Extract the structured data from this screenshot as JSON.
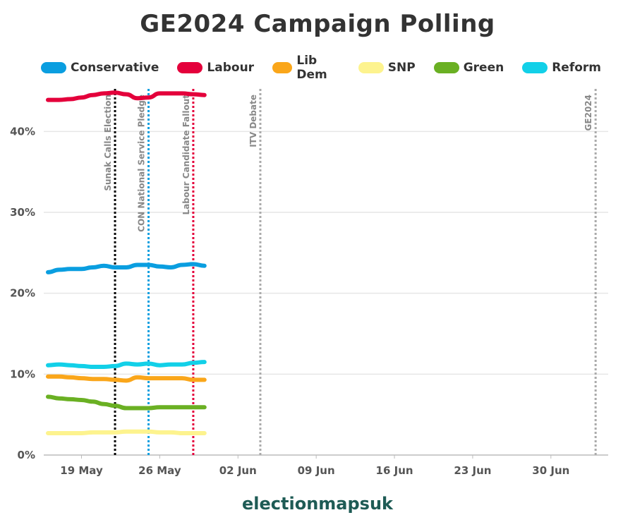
{
  "title": "GE2024 Campaign Polling",
  "brand": "electionmapsuk",
  "colors": {
    "grid": "#e6e6e6",
    "axis": "#bbbbbb"
  },
  "chart_data": {
    "type": "line",
    "title": "GE2024 Campaign Polling",
    "xlabel": "",
    "ylabel": "",
    "x_axis": {
      "start": "2024-05-16",
      "end": "2024-07-05",
      "ticks": [
        {
          "date": "2024-05-19",
          "label": "19 May"
        },
        {
          "date": "2024-05-26",
          "label": "26 May"
        },
        {
          "date": "2024-06-02",
          "label": "02 Jun"
        },
        {
          "date": "2024-06-09",
          "label": "09 Jun"
        },
        {
          "date": "2024-06-16",
          "label": "16 Jun"
        },
        {
          "date": "2024-06-23",
          "label": "23 Jun"
        },
        {
          "date": "2024-06-30",
          "label": "30 Jun"
        }
      ]
    },
    "y_axis": {
      "ylim": [
        0,
        45
      ],
      "ticks": [
        {
          "value": 0,
          "label": "0%"
        },
        {
          "value": 10,
          "label": "10%"
        },
        {
          "value": 20,
          "label": "20%"
        },
        {
          "value": 30,
          "label": "30%"
        },
        {
          "value": 40,
          "label": "40%"
        }
      ]
    },
    "grid": true,
    "legend_position": "top",
    "x": [
      "2024-05-16",
      "2024-05-17",
      "2024-05-18",
      "2024-05-19",
      "2024-05-20",
      "2024-05-21",
      "2024-05-22",
      "2024-05-23",
      "2024-05-24",
      "2024-05-25",
      "2024-05-26",
      "2024-05-27",
      "2024-05-28",
      "2024-05-29",
      "2024-05-30"
    ],
    "series": [
      {
        "name": "Conservative",
        "color": "#0a9ee0",
        "values": [
          22.6,
          22.9,
          23.0,
          23.0,
          23.2,
          23.4,
          23.2,
          23.2,
          23.5,
          23.5,
          23.3,
          23.2,
          23.5,
          23.6,
          23.4
        ]
      },
      {
        "name": "Labour",
        "color": "#e4003b",
        "values": [
          43.9,
          43.9,
          44.0,
          44.2,
          44.5,
          44.7,
          44.8,
          44.6,
          44.1,
          44.2,
          44.7,
          44.7,
          44.7,
          44.6,
          44.5
        ]
      },
      {
        "name": "Lib Dem",
        "color": "#faa61a",
        "values": [
          9.7,
          9.7,
          9.6,
          9.5,
          9.4,
          9.4,
          9.3,
          9.2,
          9.6,
          9.5,
          9.5,
          9.5,
          9.5,
          9.3,
          9.3
        ]
      },
      {
        "name": "SNP",
        "color": "#fdf38e",
        "values": [
          2.7,
          2.7,
          2.7,
          2.7,
          2.8,
          2.8,
          2.8,
          2.9,
          2.9,
          2.9,
          2.8,
          2.8,
          2.7,
          2.7,
          2.7
        ]
      },
      {
        "name": "Green",
        "color": "#6ab023",
        "values": [
          7.2,
          7.0,
          6.9,
          6.8,
          6.6,
          6.3,
          6.1,
          5.8,
          5.8,
          5.8,
          5.9,
          5.9,
          5.9,
          5.9,
          5.9
        ]
      },
      {
        "name": "Reform",
        "color": "#12d0e8",
        "values": [
          11.1,
          11.2,
          11.1,
          11.0,
          10.9,
          10.9,
          11.0,
          11.3,
          11.2,
          11.3,
          11.1,
          11.2,
          11.2,
          11.4,
          11.5
        ]
      }
    ],
    "events": [
      {
        "date": "2024-05-22",
        "label": "Sunak Calls Election",
        "color": "#000000"
      },
      {
        "date": "2024-05-25",
        "label": "CON National Service Pledge",
        "color": "#0a9ee0"
      },
      {
        "date": "2024-05-29",
        "label": "Labour Candidate Fallout",
        "color": "#e4003b"
      },
      {
        "date": "2024-06-04",
        "label": "ITV Debate",
        "color": "#aaaaaa"
      },
      {
        "date": "2024-07-04",
        "label": "GE2024",
        "color": "#aaaaaa"
      }
    ]
  }
}
